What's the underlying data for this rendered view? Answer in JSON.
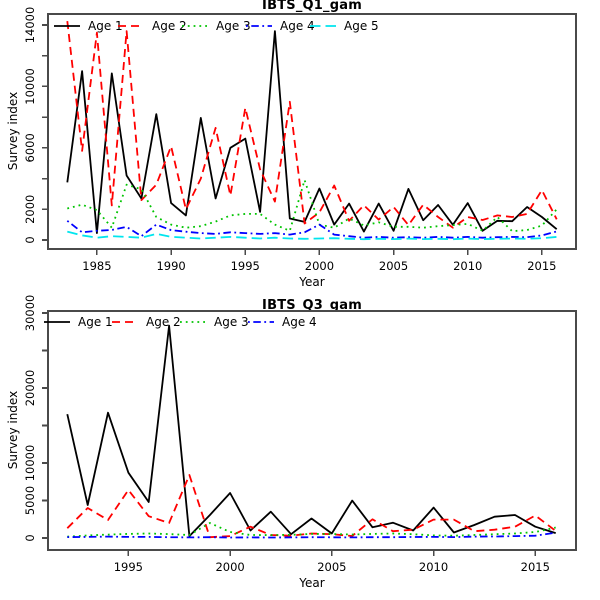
{
  "chart_data": [
    {
      "type": "line",
      "title": "IBTS_Q1_gam",
      "xlabel": "Year",
      "ylabel": "Survey index",
      "legend_position": "top-left-horizontal",
      "grid": false,
      "xlim": [
        1981.7,
        2017.3
      ],
      "ylim": [
        -586,
        14715
      ],
      "xticks": [
        1985,
        1990,
        1995,
        2000,
        2005,
        2010,
        2015
      ],
      "yticks": [
        {
          "v": 0,
          "label": "0"
        },
        {
          "v": 2000,
          "label": "2000"
        },
        {
          "v": 4000,
          "label": ""
        },
        {
          "v": 6000,
          "label": "6000"
        },
        {
          "v": 8000,
          "label": ""
        },
        {
          "v": 10000,
          "label": "10000"
        },
        {
          "v": 12000,
          "label": ""
        },
        {
          "v": 14000,
          "label": "14000"
        }
      ],
      "years": [
        1983,
        1984,
        1985,
        1986,
        1987,
        1988,
        1989,
        1990,
        1991,
        1992,
        1993,
        1994,
        1995,
        1996,
        1997,
        1998,
        1999,
        2000,
        2001,
        2002,
        2003,
        2004,
        2005,
        2006,
        2007,
        2008,
        2009,
        2010,
        2011,
        2012,
        2013,
        2014,
        2015,
        2016
      ],
      "series": [
        {
          "name": "Age 1",
          "color": "#000000",
          "style": "solid",
          "values": [
            3750,
            11000,
            450,
            10850,
            4200,
            2700,
            8200,
            2400,
            1600,
            7950,
            2700,
            6000,
            6600,
            1830,
            13600,
            1400,
            1180,
            3350,
            1000,
            2370,
            550,
            2370,
            600,
            3330,
            1290,
            2280,
            990,
            2400,
            600,
            1250,
            1225,
            2150,
            1500,
            700
          ]
        },
        {
          "name": "Age 2",
          "color": "#ff0000",
          "style": "dashed",
          "values": [
            14250,
            5800,
            13500,
            2250,
            13600,
            2600,
            3600,
            6100,
            2000,
            4000,
            7300,
            2900,
            8600,
            4600,
            2500,
            9000,
            1075,
            1800,
            3550,
            1250,
            2260,
            1330,
            2150,
            970,
            2300,
            1500,
            800,
            1500,
            1300,
            1600,
            1500,
            1700,
            3250,
            1350
          ]
        },
        {
          "name": "Age 3",
          "color": "#00c400",
          "style": "dotted",
          "values": [
            2050,
            2300,
            1950,
            800,
            3600,
            3300,
            1500,
            1000,
            800,
            900,
            1200,
            1600,
            1700,
            1700,
            1000,
            600,
            3900,
            1000,
            800,
            1400,
            950,
            1150,
            860,
            860,
            800,
            900,
            970,
            1050,
            600,
            1500,
            570,
            650,
            940,
            2000
          ]
        },
        {
          "name": "Age 4",
          "color": "#0000ff",
          "style": "dashdot",
          "values": [
            1250,
            500,
            600,
            660,
            850,
            250,
            1000,
            645,
            540,
            450,
            400,
            500,
            450,
            400,
            450,
            350,
            500,
            1000,
            350,
            250,
            150,
            200,
            150,
            180,
            150,
            200,
            150,
            200,
            150,
            180,
            200,
            180,
            300,
            560
          ]
        },
        {
          "name": "Age 5",
          "color": "#00e5ee",
          "style": "longdash",
          "values": [
            550,
            300,
            150,
            250,
            200,
            150,
            400,
            210,
            150,
            100,
            150,
            200,
            150,
            100,
            150,
            100,
            80,
            100,
            120,
            80,
            50,
            80,
            60,
            90,
            60,
            80,
            50,
            90,
            60,
            80,
            90,
            80,
            120,
            200
          ]
        }
      ]
    },
    {
      "type": "line",
      "title": "IBTS_Q3_gam",
      "xlabel": "Year",
      "ylabel": "Survey index",
      "legend_position": "top-left-horizontal",
      "grid": false,
      "xlim": [
        1991.05,
        2017.0
      ],
      "ylim": [
        -1600,
        30260
      ],
      "xticks": [
        1995,
        2000,
        2005,
        2010,
        2015
      ],
      "yticks": [
        {
          "v": 0,
          "label": "0"
        },
        {
          "v": 5000,
          "label": "5000"
        },
        {
          "v": 10000,
          "label": "10000"
        },
        {
          "v": 15000,
          "label": ""
        },
        {
          "v": 20000,
          "label": "20000"
        },
        {
          "v": 25000,
          "label": ""
        },
        {
          "v": 30000,
          "label": "30000"
        }
      ],
      "years": [
        1992,
        1993,
        1994,
        1995,
        1996,
        1997,
        1998,
        1999,
        2000,
        2001,
        2002,
        2003,
        2004,
        2005,
        2006,
        2007,
        2008,
        2009,
        2010,
        2011,
        2012,
        2013,
        2014,
        2015,
        2016
      ],
      "series": [
        {
          "name": "Age 1",
          "color": "#000000",
          "style": "solid",
          "values": [
            16500,
            4400,
            16700,
            8700,
            4800,
            28300,
            250,
            3050,
            6000,
            1000,
            3500,
            500,
            2600,
            600,
            4980,
            1430,
            2040,
            1000,
            4050,
            730,
            1730,
            2840,
            3070,
            1500,
            650
          ]
        },
        {
          "name": "Age 2",
          "color": "#ff0000",
          "style": "dashed",
          "values": [
            1300,
            4000,
            2400,
            6400,
            2900,
            2000,
            8400,
            100,
            250,
            1500,
            400,
            300,
            600,
            500,
            270,
            2490,
            900,
            1100,
            2450,
            2450,
            900,
            1100,
            1500,
            3000,
            950
          ]
        },
        {
          "name": "Age 3",
          "color": "#00c400",
          "style": "dotted",
          "values": [
            170,
            350,
            450,
            550,
            600,
            520,
            400,
            2000,
            800,
            400,
            380,
            420,
            550,
            530,
            460,
            540,
            600,
            500,
            350,
            300,
            400,
            500,
            600,
            800,
            1400
          ]
        },
        {
          "name": "Age 4",
          "color": "#0000ff",
          "style": "dashdot",
          "values": [
            120,
            150,
            180,
            150,
            140,
            100,
            80,
            100,
            60,
            80,
            70,
            80,
            100,
            90,
            80,
            100,
            110,
            130,
            150,
            120,
            180,
            200,
            250,
            300,
            700
          ]
        }
      ]
    }
  ],
  "frame": {
    "axis_color": "#4a4a4a"
  }
}
